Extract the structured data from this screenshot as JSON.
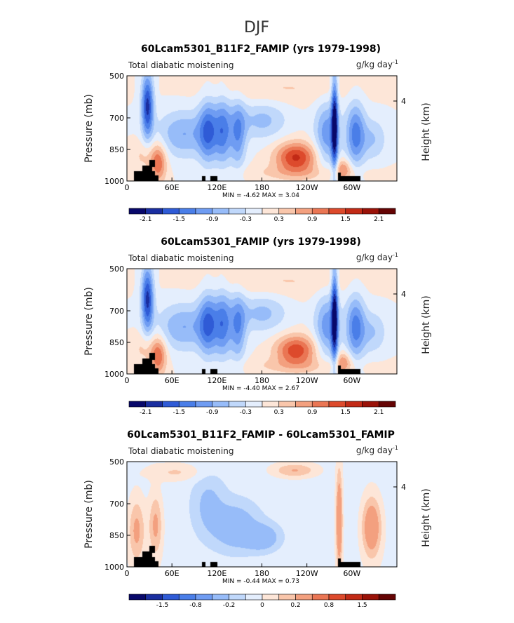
{
  "page_title": "DJF",
  "colors": [
    "#08086a",
    "#1a2ea0",
    "#2f5bd6",
    "#4a7ee8",
    "#6f9cf2",
    "#97bcf9",
    "#c0d8fb",
    "#e4eefd",
    "#fde6d8",
    "#f9c6ab",
    "#f3a07f",
    "#ea7654",
    "#dd4a2c",
    "#c22a16",
    "#9a1208",
    "#650404"
  ],
  "chart_data": [
    {
      "type": "contour",
      "title": "60Lcam5301_B11F2_FAMIP (yrs 1979-1998)",
      "left_string": "Total diabatic moistening",
      "units": "g/kg day",
      "units_exponent": "-1",
      "xlabel": "",
      "ylabel": "Pressure (mb)",
      "ylabel_right": "Height (km)",
      "x_ticks": [
        "0",
        "60E",
        "120E",
        "180",
        "120W",
        "60W"
      ],
      "y_ticks": [
        "500",
        "700",
        "850",
        "1000"
      ],
      "right_ticks": [
        "4"
      ],
      "stats": "MIN =    -4.62   MAX =     3.04",
      "colorbar_labels": [
        "-2.1",
        "-1.5",
        "-0.9",
        "-0.3",
        "0.3",
        "0.9",
        "1.5",
        "2.1"
      ],
      "levels": [
        -2.4,
        -2.1,
        -1.8,
        -1.5,
        -1.2,
        -0.9,
        -0.6,
        -0.3,
        0,
        0.3,
        0.6,
        0.9,
        1.2,
        1.5,
        1.8,
        2.1,
        2.4
      ]
    },
    {
      "type": "contour",
      "title": "60Lcam5301_FAMIP (yrs 1979-1998)",
      "left_string": "Total diabatic moistening",
      "units": "g/kg day",
      "units_exponent": "-1",
      "xlabel": "",
      "ylabel": "Pressure (mb)",
      "ylabel_right": "Height (km)",
      "x_ticks": [
        "0",
        "60E",
        "120E",
        "180",
        "120W",
        "60W"
      ],
      "y_ticks": [
        "500",
        "700",
        "850",
        "1000"
      ],
      "right_ticks": [
        "4"
      ],
      "stats": "MIN =    -4.40   MAX =     2.67",
      "colorbar_labels": [
        "-2.1",
        "-1.5",
        "-0.9",
        "-0.3",
        "0.3",
        "0.9",
        "1.5",
        "2.1"
      ],
      "levels": [
        -2.4,
        -2.1,
        -1.8,
        -1.5,
        -1.2,
        -0.9,
        -0.6,
        -0.3,
        0,
        0.3,
        0.6,
        0.9,
        1.2,
        1.5,
        1.8,
        2.1,
        2.4
      ]
    },
    {
      "type": "contour",
      "title": "60Lcam5301_B11F2_FAMIP - 60Lcam5301_FAMIP",
      "left_string": "Total diabatic moistening",
      "units": "g/kg day",
      "units_exponent": "-1",
      "xlabel": "",
      "ylabel": "Pressure (mb)",
      "ylabel_right": "Height (km)",
      "x_ticks": [
        "0",
        "60E",
        "120E",
        "180",
        "120W",
        "60W"
      ],
      "y_ticks": [
        "500",
        "700",
        "850",
        "1000"
      ],
      "right_ticks": [
        "4"
      ],
      "stats": "MIN =    -0.44   MAX =     0.73",
      "colorbar_labels": [
        "-1.5",
        "-0.8",
        "-0.2",
        "0",
        "0.2",
        "0.8",
        "1.5"
      ],
      "levels": [
        -2.5,
        -2,
        -1.5,
        -1,
        -0.8,
        -0.5,
        -0.2,
        -0.1,
        0,
        0.1,
        0.2,
        0.5,
        0.8,
        1,
        1.5,
        2,
        2.5
      ]
    }
  ]
}
